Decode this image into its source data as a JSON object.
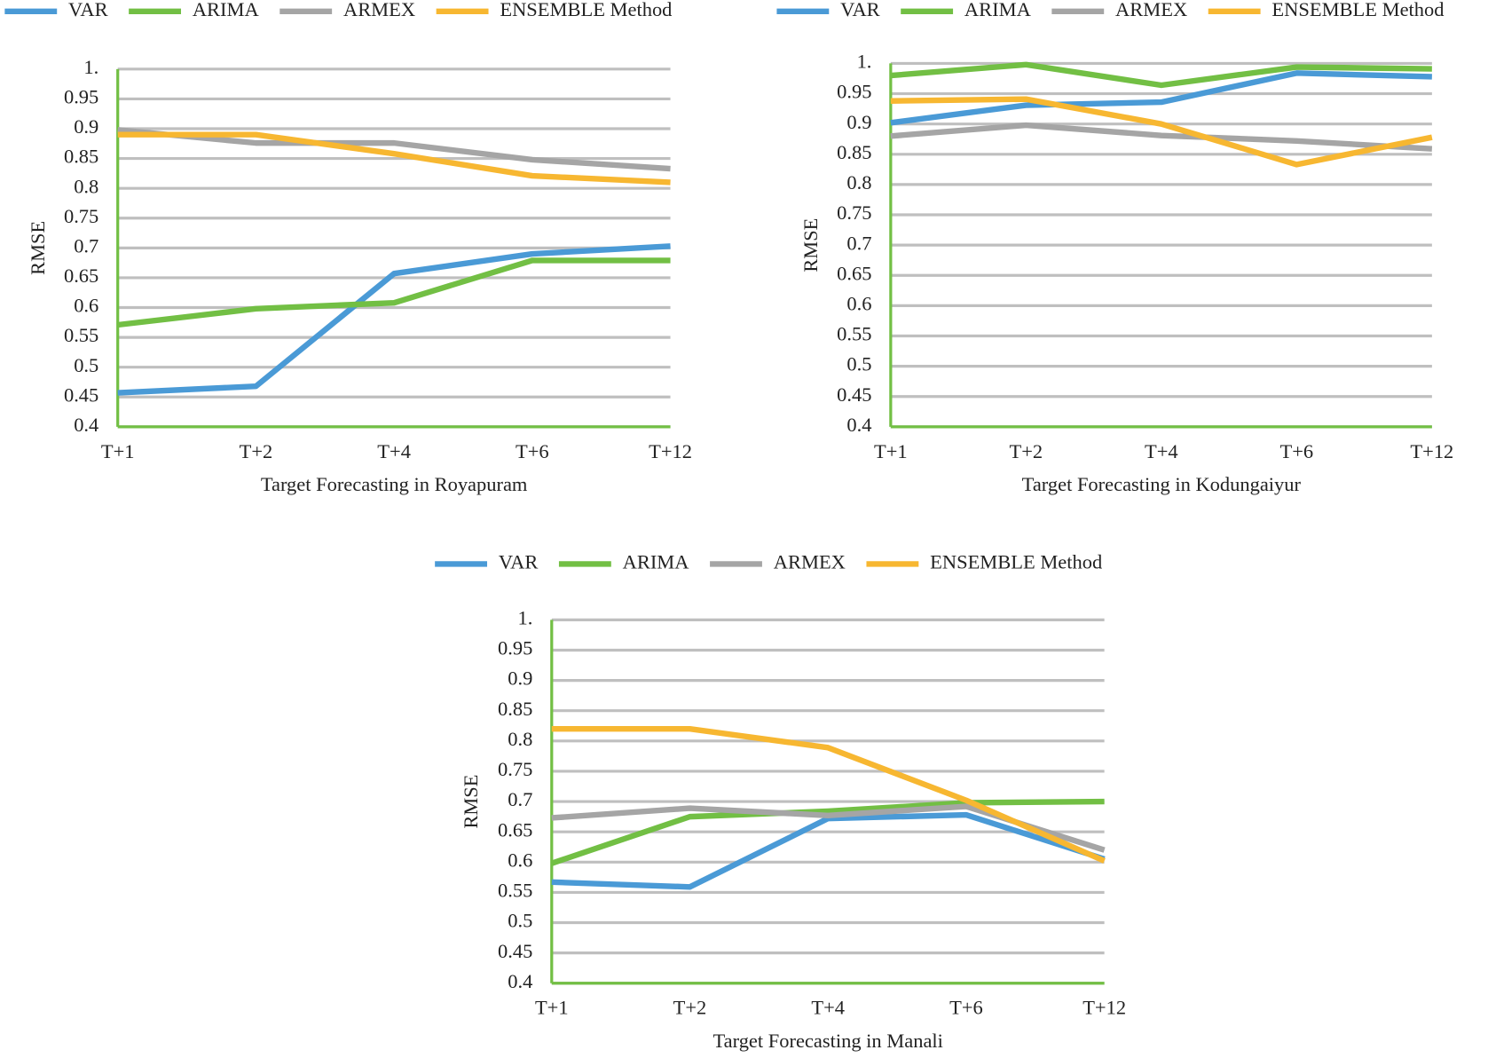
{
  "chart_data": [
    {
      "type": "line",
      "x_label": "Target Forecasting in Royapuram",
      "y_label": "RMSE",
      "categories": [
        "T+1",
        "T+2",
        "T+4",
        "T+6",
        "T+12"
      ],
      "series": [
        {
          "name": "VAR",
          "color": "#4a9ad6",
          "values": [
            0.457,
            0.468,
            0.657,
            0.69,
            0.703
          ]
        },
        {
          "name": "ARIMA",
          "color": "#72bf44",
          "values": [
            0.571,
            0.598,
            0.608,
            0.679,
            0.679
          ]
        },
        {
          "name": "ARMEX",
          "color": "#a5a5a5",
          "values": [
            0.898,
            0.876,
            0.876,
            0.848,
            0.833
          ]
        },
        {
          "name": "ENSEMBLE Method",
          "color": "#f7b731",
          "values": [
            0.89,
            0.89,
            0.858,
            0.821,
            0.81
          ]
        }
      ],
      "ylim": [
        0.4,
        1
      ],
      "yticks": [
        0.4,
        0.45,
        0.5,
        0.55,
        0.6,
        0.65,
        0.7,
        0.75,
        0.8,
        0.85,
        0.9,
        0.95,
        {
          "value": 1,
          "label": "1."
        }
      ],
      "grid": true,
      "legend": "top"
    },
    {
      "type": "line",
      "x_label": "Target Forecasting in Kodungaiyur",
      "y_label": "RMSE",
      "categories": [
        "T+1",
        "T+2",
        "T+4",
        "T+6",
        "T+12"
      ],
      "series": [
        {
          "name": "VAR",
          "color": "#4a9ad6",
          "values": [
            0.902,
            0.931,
            0.936,
            0.984,
            0.978
          ]
        },
        {
          "name": "ARIMA",
          "color": "#72bf44",
          "values": [
            0.98,
            0.998,
            0.964,
            0.994,
            0.991
          ]
        },
        {
          "name": "ARMEX",
          "color": "#a5a5a5",
          "values": [
            0.88,
            0.898,
            0.881,
            0.872,
            0.859
          ]
        },
        {
          "name": "ENSEMBLE Method",
          "color": "#f7b731",
          "values": [
            0.938,
            0.941,
            0.9,
            0.833,
            0.878
          ]
        }
      ],
      "ylim": [
        0.4,
        1
      ],
      "yticks": [
        0.4,
        0.45,
        0.5,
        0.55,
        0.6,
        0.65,
        0.7,
        0.75,
        0.8,
        0.85,
        0.9,
        0.95,
        {
          "value": 1,
          "label": "1."
        }
      ],
      "grid": true,
      "legend": "top"
    },
    {
      "type": "line",
      "x_label": "Target Forecasting in Manali",
      "y_label": "RMSE",
      "categories": [
        "T+1",
        "T+2",
        "T+4",
        "T+6",
        "T+12"
      ],
      "series": [
        {
          "name": "VAR",
          "color": "#4a9ad6",
          "values": [
            0.567,
            0.559,
            0.672,
            0.678,
            0.605
          ]
        },
        {
          "name": "ARIMA",
          "color": "#72bf44",
          "values": [
            0.598,
            0.675,
            0.684,
            0.698,
            0.7
          ]
        },
        {
          "name": "ARMEX",
          "color": "#a5a5a5",
          "values": [
            0.673,
            0.689,
            0.677,
            0.692,
            0.62
          ]
        },
        {
          "name": "ENSEMBLE Method",
          "color": "#f7b731",
          "values": [
            0.82,
            0.82,
            0.789,
            0.702,
            0.602
          ]
        }
      ],
      "ylim": [
        0.4,
        1
      ],
      "yticks": [
        0.4,
        0.45,
        0.5,
        0.55,
        0.6,
        0.65,
        0.7,
        0.75,
        0.8,
        0.85,
        0.9,
        0.95,
        {
          "value": 1,
          "label": "1."
        }
      ],
      "grid": true,
      "legend": "top"
    }
  ]
}
